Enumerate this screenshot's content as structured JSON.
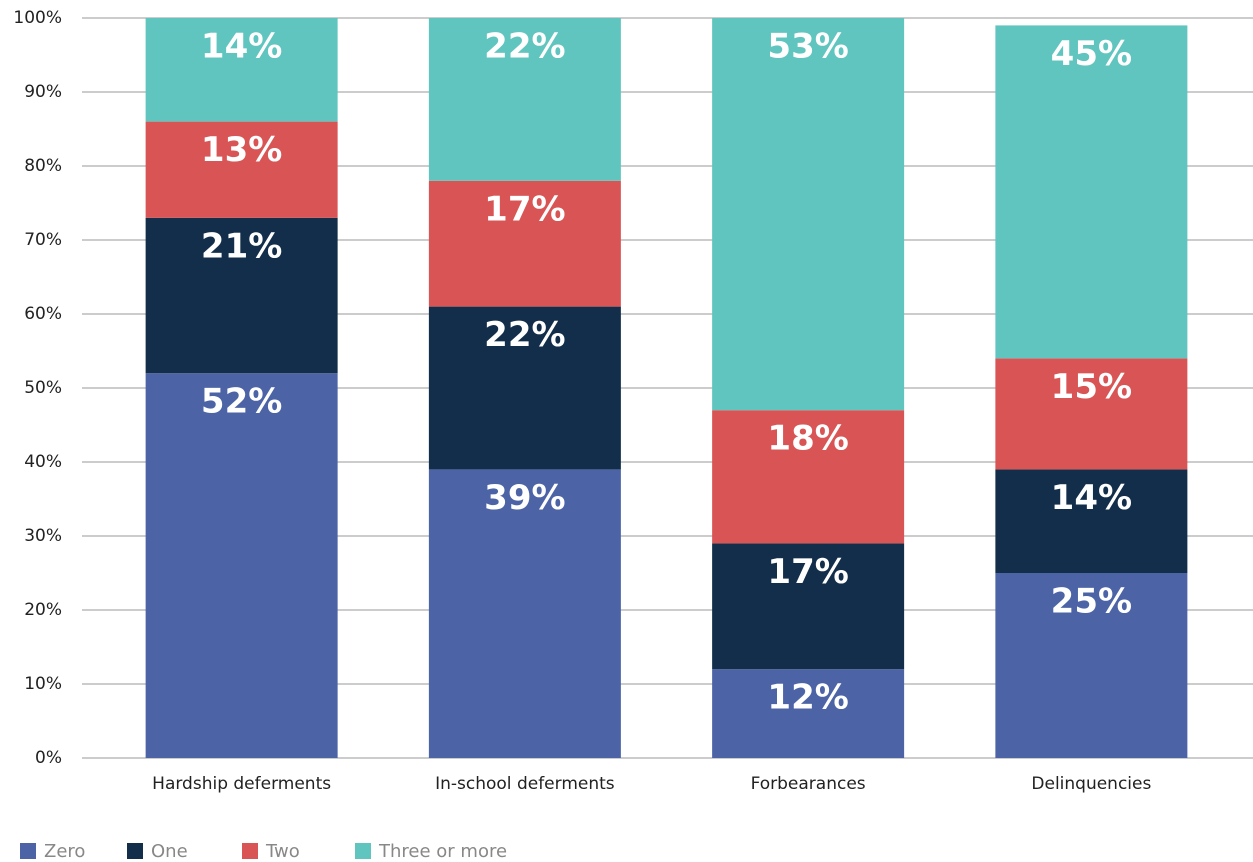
{
  "chart_data": {
    "type": "stacked_bar",
    "categories": [
      "Hardship deferments",
      "In-school deferments",
      "Forbearances",
      "Delinquencies"
    ],
    "series": [
      {
        "name": "Zero",
        "color": "#4c63a6",
        "values": [
          52,
          39,
          12,
          25
        ],
        "value_labels": [
          "52%",
          "39%",
          "12%",
          "25%"
        ]
      },
      {
        "name": "One",
        "color": "#132e4a",
        "values": [
          21,
          22,
          17,
          14
        ],
        "value_labels": [
          "21%",
          "22%",
          "17%",
          "14%"
        ]
      },
      {
        "name": "Two",
        "color": "#d95555",
        "values": [
          13,
          17,
          18,
          15
        ],
        "value_labels": [
          "13%",
          "17%",
          "18%",
          "15%"
        ]
      },
      {
        "name": "Three or more",
        "color": "#60c5bf",
        "values": [
          14,
          22,
          53,
          45
        ],
        "value_labels": [
          "14%",
          "22%",
          "53%",
          "45%"
        ]
      }
    ],
    "ylim": [
      0,
      100
    ],
    "yticks": [
      {
        "value": 0,
        "label": "0%"
      },
      {
        "value": 10,
        "label": "10%"
      },
      {
        "value": 20,
        "label": "20%"
      },
      {
        "value": 30,
        "label": "30%"
      },
      {
        "value": 40,
        "label": "40%"
      },
      {
        "value": 50,
        "label": "50%"
      },
      {
        "value": 60,
        "label": "60%"
      },
      {
        "value": 70,
        "label": "70%"
      },
      {
        "value": 80,
        "label": "80%"
      },
      {
        "value": 90,
        "label": "90%"
      },
      {
        "value": 100,
        "label": "100%"
      }
    ],
    "grid": true,
    "legend": "bottom-left"
  }
}
